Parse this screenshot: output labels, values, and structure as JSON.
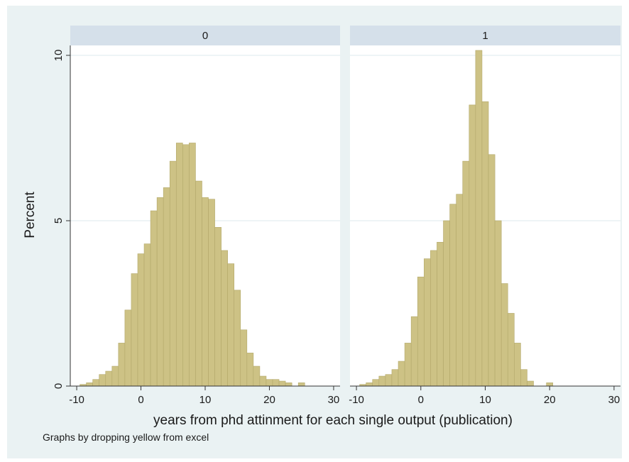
{
  "chart_data": {
    "type": "bar",
    "xlabel": "years from phd attinment for each single output (publication)",
    "ylabel": "Percent",
    "note": "Graphs by dropping yellow from excel",
    "xlim": [
      -11,
      31
    ],
    "ylim": [
      0,
      10.3
    ],
    "xticks": [
      -10,
      0,
      10,
      20,
      30
    ],
    "yticks": [
      0,
      5,
      10
    ],
    "bin_width": 1,
    "grid": true,
    "colors": {
      "bar": "#cdc285",
      "bar_edge": "#b3a86a",
      "strip": "#d5e0ea",
      "panel_bg": "#eaf2f3",
      "plot_bg": "#ffffff"
    },
    "panels": [
      {
        "label": "0",
        "bins": [
          {
            "x": -9,
            "y": 0.05
          },
          {
            "x": -8,
            "y": 0.1
          },
          {
            "x": -7,
            "y": 0.2
          },
          {
            "x": -6,
            "y": 0.35
          },
          {
            "x": -5,
            "y": 0.45
          },
          {
            "x": -4,
            "y": 0.6
          },
          {
            "x": -3,
            "y": 1.3
          },
          {
            "x": -2,
            "y": 2.3
          },
          {
            "x": -1,
            "y": 3.4
          },
          {
            "x": 0,
            "y": 4.0
          },
          {
            "x": 1,
            "y": 4.3
          },
          {
            "x": 2,
            "y": 5.3
          },
          {
            "x": 3,
            "y": 5.7
          },
          {
            "x": 4,
            "y": 6.0
          },
          {
            "x": 5,
            "y": 6.8
          },
          {
            "x": 6,
            "y": 7.35
          },
          {
            "x": 7,
            "y": 7.3
          },
          {
            "x": 8,
            "y": 7.35
          },
          {
            "x": 9,
            "y": 6.2
          },
          {
            "x": 10,
            "y": 5.7
          },
          {
            "x": 11,
            "y": 5.65
          },
          {
            "x": 12,
            "y": 4.8
          },
          {
            "x": 13,
            "y": 4.1
          },
          {
            "x": 14,
            "y": 3.7
          },
          {
            "x": 15,
            "y": 2.9
          },
          {
            "x": 16,
            "y": 1.7
          },
          {
            "x": 17,
            "y": 1.0
          },
          {
            "x": 18,
            "y": 0.6
          },
          {
            "x": 19,
            "y": 0.3
          },
          {
            "x": 20,
            "y": 0.2
          },
          {
            "x": 21,
            "y": 0.2
          },
          {
            "x": 22,
            "y": 0.15
          },
          {
            "x": 23,
            "y": 0.1
          },
          {
            "x": 25,
            "y": 0.1
          }
        ]
      },
      {
        "label": "1",
        "bins": [
          {
            "x": -9,
            "y": 0.05
          },
          {
            "x": -8,
            "y": 0.1
          },
          {
            "x": -7,
            "y": 0.2
          },
          {
            "x": -6,
            "y": 0.3
          },
          {
            "x": -5,
            "y": 0.35
          },
          {
            "x": -4,
            "y": 0.5
          },
          {
            "x": -3,
            "y": 0.75
          },
          {
            "x": -2,
            "y": 1.3
          },
          {
            "x": -1,
            "y": 2.1
          },
          {
            "x": 0,
            "y": 3.3
          },
          {
            "x": 1,
            "y": 3.85
          },
          {
            "x": 2,
            "y": 4.1
          },
          {
            "x": 3,
            "y": 4.35
          },
          {
            "x": 4,
            "y": 5.0
          },
          {
            "x": 5,
            "y": 5.5
          },
          {
            "x": 6,
            "y": 5.8
          },
          {
            "x": 7,
            "y": 6.8
          },
          {
            "x": 8,
            "y": 8.5
          },
          {
            "x": 9,
            "y": 10.15
          },
          {
            "x": 10,
            "y": 8.6
          },
          {
            "x": 11,
            "y": 7.0
          },
          {
            "x": 12,
            "y": 5.0
          },
          {
            "x": 13,
            "y": 3.1
          },
          {
            "x": 14,
            "y": 2.2
          },
          {
            "x": 15,
            "y": 1.3
          },
          {
            "x": 16,
            "y": 0.5
          },
          {
            "x": 17,
            "y": 0.15
          },
          {
            "x": 20,
            "y": 0.1
          }
        ]
      }
    ]
  }
}
